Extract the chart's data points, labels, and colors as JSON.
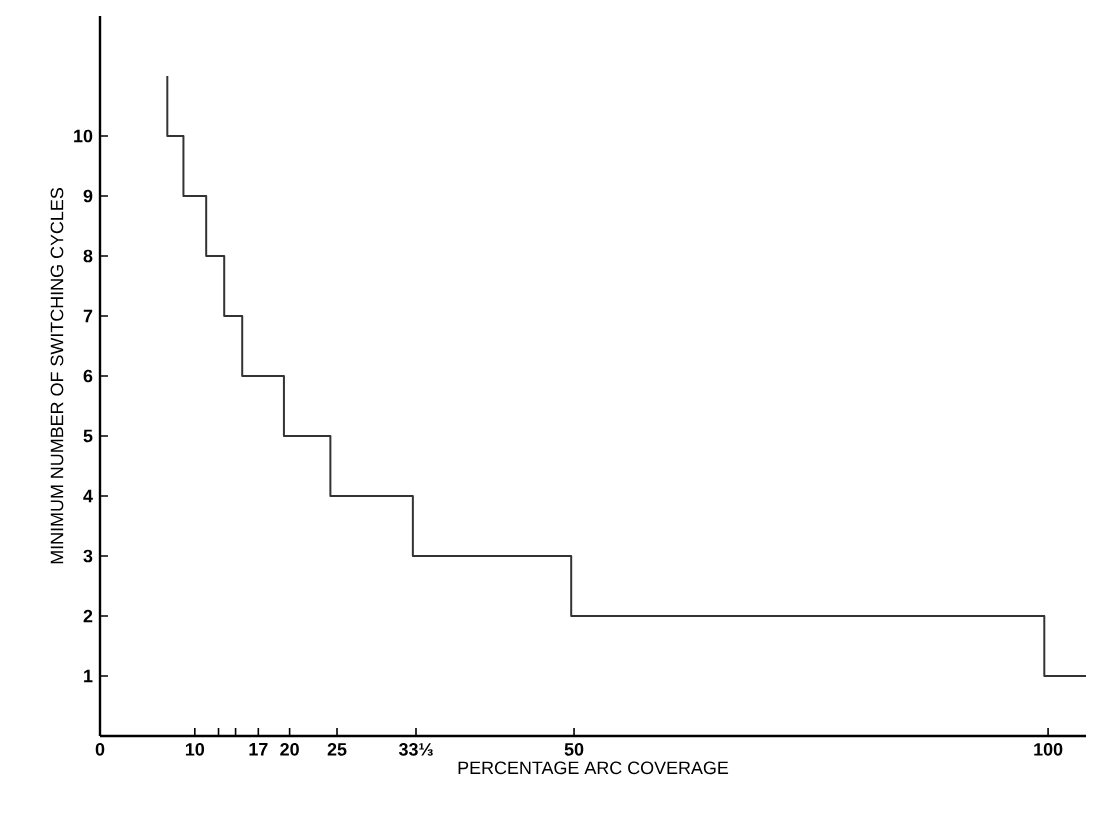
{
  "chart_data": {
    "type": "step",
    "xlabel": "PERCENTAGE ARC COVERAGE",
    "ylabel": "MINIMUM NUMBER OF SWITCHING CYCLES",
    "x": [
      7.1,
      7.1,
      8.8,
      11.2,
      13.1,
      15.0,
      19.4,
      24.3,
      33.0,
      49.7,
      99.6,
      104
    ],
    "values": [
      11,
      10,
      9,
      8,
      7,
      6,
      5,
      4,
      3,
      2,
      1,
      1
    ],
    "color": "#333333",
    "xlim": [
      0,
      104
    ],
    "ylim": [
      0,
      12
    ],
    "xticks": [
      0,
      10,
      {
        "value": 12.5,
        "label": null
      },
      {
        "value": 14.3,
        "label": null
      },
      {
        "value": 16.7,
        "label": "17"
      },
      20,
      25,
      {
        "value": 33.33,
        "label": "33⅓"
      },
      50,
      100
    ],
    "yticks": [
      1,
      2,
      3,
      4,
      5,
      6,
      7,
      8,
      9,
      10
    ],
    "grid": false,
    "marker": "none",
    "line_style": "solid"
  }
}
